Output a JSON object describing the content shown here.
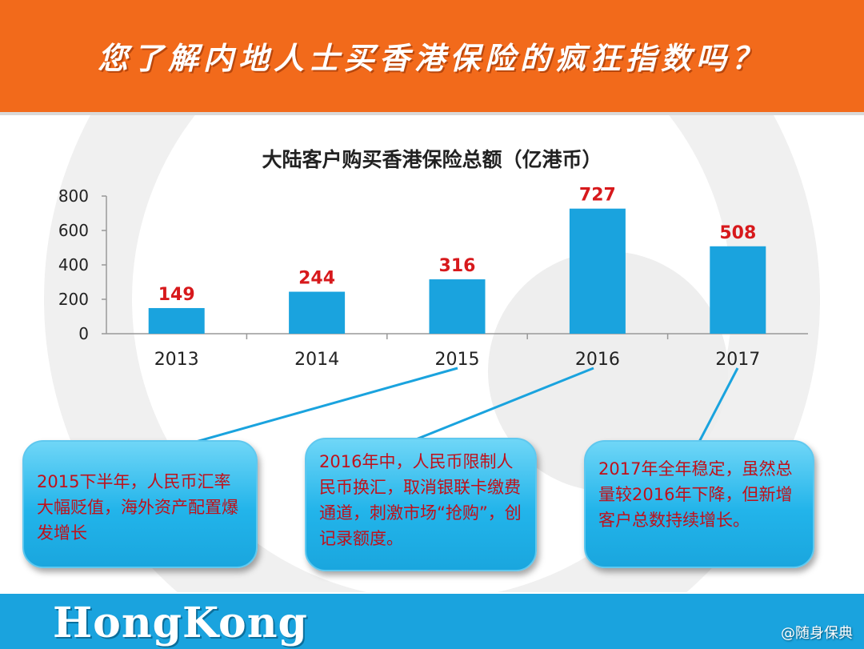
{
  "header": {
    "title": "您了解内地人士买香港保险的疯狂指数吗？"
  },
  "chart_data": {
    "type": "bar",
    "title": "大陆客户购买香港保险总额（亿港币）",
    "categories": [
      "2013",
      "2014",
      "2015",
      "2016",
      "2017"
    ],
    "values": [
      149,
      244,
      316,
      727,
      508
    ],
    "data_labels": [
      "149",
      "244",
      "316",
      "727",
      "508"
    ],
    "yticks": [
      "0",
      "200",
      "400",
      "600",
      "800"
    ],
    "ylim": [
      0,
      800
    ],
    "grid": false,
    "legend": "none",
    "bar_color": "#1aa3de",
    "label_color": "#d7191c"
  },
  "callouts": [
    {
      "text": "2015下半年，人民币汇率大幅贬值，海外资产配置爆发增长"
    },
    {
      "text": "2016年中，人民币限制人民币换汇，取消银联卡缴费通道，刺激市场“抢购”，创记录额度。"
    },
    {
      "text": "2017年全年稳定，虽然总量较2016年下降，但新增客户总数持续增长。"
    }
  ],
  "footer": {
    "brand": "HongKong",
    "source": "@随身保典"
  },
  "colors": {
    "header_bg": "#f26a1b",
    "footer_bg": "#1aa3de",
    "callout_text": "#c0101a"
  }
}
